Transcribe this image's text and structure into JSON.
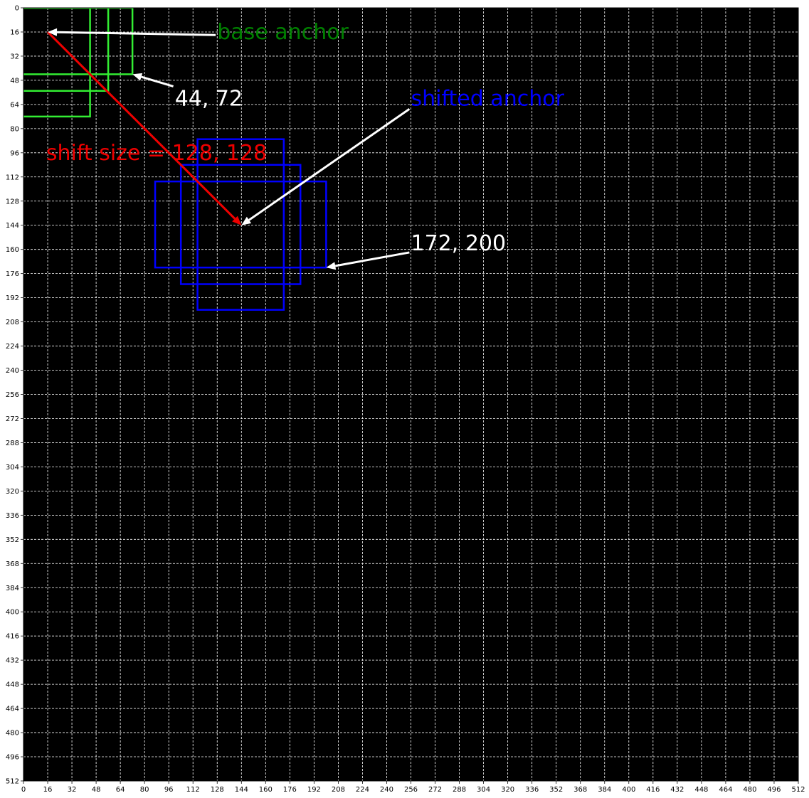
{
  "chart_data": {
    "type": "scatter",
    "xlim": [
      0,
      512
    ],
    "ylim": [
      512,
      0
    ],
    "y_inverted": true,
    "x_ticks": [
      0,
      16,
      32,
      48,
      64,
      80,
      96,
      112,
      128,
      144,
      160,
      176,
      192,
      208,
      224,
      240,
      256,
      272,
      288,
      304,
      320,
      336,
      352,
      368,
      384,
      400,
      416,
      432,
      448,
      464,
      480,
      496,
      512
    ],
    "y_ticks": [
      0,
      16,
      32,
      48,
      64,
      80,
      96,
      112,
      128,
      144,
      160,
      176,
      192,
      208,
      224,
      240,
      256,
      272,
      288,
      304,
      320,
      336,
      352,
      368,
      384,
      400,
      416,
      432,
      448,
      464,
      480,
      496,
      512
    ],
    "grid": true,
    "grid_style": "dashed",
    "background_color": "#000000",
    "grid_color": "#ffffff",
    "green_color": "#33ee33",
    "blue_color": "#0000ff",
    "red_color": "#ee0000",
    "base_anchor_boxes": [
      {
        "x0": -28,
        "y0": 0,
        "x1": 44,
        "y1": 72
      },
      {
        "x0": -40,
        "y0": 0,
        "x1": 56,
        "y1": 55
      },
      {
        "x0": -56,
        "y0": 0,
        "x1": 72,
        "y1": 44
      }
    ],
    "shifted_anchor_boxes": [
      {
        "x0": 115,
        "y0": 87,
        "x1": 172,
        "y1": 200
      },
      {
        "x0": 104,
        "y0": 104,
        "x1": 183,
        "y1": 183
      },
      {
        "x0": 87,
        "y0": 115,
        "x1": 200,
        "y1": 172
      }
    ],
    "shift_arrow": {
      "from": [
        16,
        16
      ],
      "to": [
        144,
        144
      ]
    },
    "annotations": [
      {
        "text": "base anchor",
        "color": "#008000",
        "text_pos": [
          128,
          16
        ],
        "arrow_tail": [
          127,
          18
        ],
        "arrow_head": [
          16,
          16
        ]
      },
      {
        "text": "44, 72",
        "color": "#ffffff",
        "text_pos": [
          100,
          60
        ],
        "arrow_tail": [
          99,
          52
        ],
        "arrow_head": [
          72,
          44
        ]
      },
      {
        "text": "shifted anchor",
        "color": "#0000ff",
        "text_pos": [
          256,
          60
        ],
        "arrow_tail": [
          255,
          67
        ],
        "arrow_head": [
          144,
          144
        ]
      },
      {
        "text": "172, 200",
        "color": "#ffffff",
        "text_pos": [
          256,
          156
        ],
        "arrow_tail": [
          255,
          162
        ],
        "arrow_head": [
          200,
          172
        ]
      },
      {
        "text": "shift size = 128, 128",
        "color": "#ee0000",
        "text_pos": [
          15,
          96
        ]
      }
    ]
  }
}
